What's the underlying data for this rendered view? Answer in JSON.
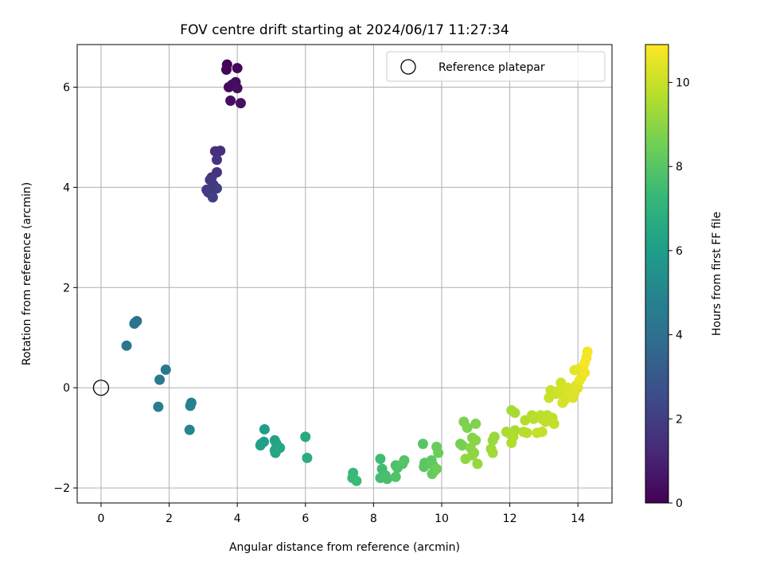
{
  "chart_data": {
    "type": "scatter",
    "title": "FOV centre drift starting at 2024/06/17 11:27:34",
    "xlabel": "Angular distance from reference (arcmin)",
    "ylabel": "Rotation from reference (arcmin)",
    "xlim": [
      -0.7,
      15
    ],
    "ylim": [
      -2.3,
      6.85
    ],
    "xticks": [
      0,
      2,
      4,
      6,
      8,
      10,
      12,
      14
    ],
    "xtick_labels": [
      "0",
      "2",
      "4",
      "6",
      "8",
      "10",
      "12",
      "14"
    ],
    "yticks": [
      -2,
      0,
      2,
      4,
      6
    ],
    "ytick_labels": [
      "−2",
      "0",
      "2",
      "4",
      "6"
    ],
    "grid": true,
    "legend": {
      "position": "top-right",
      "entries": [
        {
          "label": "Reference platepar",
          "marker": "open-circle"
        }
      ]
    },
    "reference_point": {
      "x": 0,
      "y": 0,
      "color": "#000000"
    },
    "colorbar": {
      "label": "Hours from first FF file",
      "min": 0,
      "max": 10.9,
      "ticks": [
        0,
        2,
        4,
        6,
        8,
        10
      ],
      "tick_labels": [
        "0",
        "2",
        "4",
        "6",
        "8",
        "10"
      ],
      "colormap": "viridis",
      "stops": [
        "#440154",
        "#482878",
        "#3e4989",
        "#31688e",
        "#26828e",
        "#1f9e89",
        "#35b779",
        "#6ece58",
        "#b5de2b",
        "#fde725"
      ]
    },
    "points": [
      {
        "x": 3.7,
        "y": 6.45,
        "c": 0.1
      },
      {
        "x": 3.68,
        "y": 6.35,
        "c": 0.15
      },
      {
        "x": 4.0,
        "y": 6.38,
        "c": 0.2
      },
      {
        "x": 3.75,
        "y": 6.0,
        "c": 0.25
      },
      {
        "x": 3.85,
        "y": 6.05,
        "c": 0.3
      },
      {
        "x": 3.95,
        "y": 6.1,
        "c": 0.35
      },
      {
        "x": 4.0,
        "y": 5.98,
        "c": 0.4
      },
      {
        "x": 3.8,
        "y": 5.73,
        "c": 0.45
      },
      {
        "x": 4.1,
        "y": 5.68,
        "c": 0.5
      },
      {
        "x": 3.35,
        "y": 4.72,
        "c": 1.5
      },
      {
        "x": 3.5,
        "y": 4.73,
        "c": 1.55
      },
      {
        "x": 3.4,
        "y": 4.55,
        "c": 1.6
      },
      {
        "x": 3.4,
        "y": 4.3,
        "c": 1.65
      },
      {
        "x": 3.25,
        "y": 4.2,
        "c": 1.7
      },
      {
        "x": 3.2,
        "y": 4.15,
        "c": 1.75
      },
      {
        "x": 3.3,
        "y": 4.05,
        "c": 1.8
      },
      {
        "x": 3.1,
        "y": 3.95,
        "c": 1.85
      },
      {
        "x": 3.15,
        "y": 3.9,
        "c": 1.9
      },
      {
        "x": 3.4,
        "y": 3.98,
        "c": 1.95
      },
      {
        "x": 3.25,
        "y": 3.85,
        "c": 2.0
      },
      {
        "x": 3.28,
        "y": 3.8,
        "c": 2.05
      },
      {
        "x": 1.05,
        "y": 1.33,
        "c": 4.1
      },
      {
        "x": 1.0,
        "y": 1.3,
        "c": 4.15
      },
      {
        "x": 0.98,
        "y": 1.28,
        "c": 4.2
      },
      {
        "x": 0.75,
        "y": 0.84,
        "c": 4.3
      },
      {
        "x": 1.9,
        "y": 0.36,
        "c": 4.4
      },
      {
        "x": 1.72,
        "y": 0.16,
        "c": 4.5
      },
      {
        "x": 1.68,
        "y": -0.38,
        "c": 4.6
      },
      {
        "x": 2.65,
        "y": -0.3,
        "c": 4.8
      },
      {
        "x": 2.62,
        "y": -0.36,
        "c": 4.85
      },
      {
        "x": 2.6,
        "y": -0.84,
        "c": 5.0
      },
      {
        "x": 4.8,
        "y": -0.83,
        "c": 6.0
      },
      {
        "x": 4.78,
        "y": -1.08,
        "c": 6.05
      },
      {
        "x": 4.7,
        "y": -1.12,
        "c": 6.1
      },
      {
        "x": 4.68,
        "y": -1.15,
        "c": 6.15
      },
      {
        "x": 5.1,
        "y": -1.05,
        "c": 6.2
      },
      {
        "x": 5.15,
        "y": -1.12,
        "c": 6.25
      },
      {
        "x": 5.2,
        "y": -1.18,
        "c": 6.3
      },
      {
        "x": 5.1,
        "y": -1.25,
        "c": 6.35
      },
      {
        "x": 5.12,
        "y": -1.3,
        "c": 6.4
      },
      {
        "x": 5.25,
        "y": -1.2,
        "c": 6.45
      },
      {
        "x": 6.0,
        "y": -0.98,
        "c": 6.6
      },
      {
        "x": 6.05,
        "y": -1.4,
        "c": 6.7
      },
      {
        "x": 7.4,
        "y": -1.7,
        "c": 7.3
      },
      {
        "x": 7.38,
        "y": -1.8,
        "c": 7.35
      },
      {
        "x": 7.5,
        "y": -1.86,
        "c": 7.4
      },
      {
        "x": 8.2,
        "y": -1.42,
        "c": 7.5
      },
      {
        "x": 8.25,
        "y": -1.62,
        "c": 7.55
      },
      {
        "x": 8.2,
        "y": -1.8,
        "c": 7.6
      },
      {
        "x": 8.35,
        "y": -1.75,
        "c": 7.65
      },
      {
        "x": 8.4,
        "y": -1.82,
        "c": 7.7
      },
      {
        "x": 8.65,
        "y": -1.55,
        "c": 7.75
      },
      {
        "x": 8.7,
        "y": -1.6,
        "c": 7.8
      },
      {
        "x": 8.65,
        "y": -1.78,
        "c": 7.85
      },
      {
        "x": 8.9,
        "y": -1.45,
        "c": 7.9
      },
      {
        "x": 8.85,
        "y": -1.52,
        "c": 7.95
      },
      {
        "x": 9.45,
        "y": -1.12,
        "c": 8.0
      },
      {
        "x": 9.5,
        "y": -1.5,
        "c": 8.05
      },
      {
        "x": 9.48,
        "y": -1.58,
        "c": 8.1
      },
      {
        "x": 9.7,
        "y": -1.45,
        "c": 8.15
      },
      {
        "x": 9.75,
        "y": -1.55,
        "c": 8.2
      },
      {
        "x": 9.8,
        "y": -1.65,
        "c": 8.25
      },
      {
        "x": 9.72,
        "y": -1.72,
        "c": 8.3
      },
      {
        "x": 9.85,
        "y": -1.18,
        "c": 8.35
      },
      {
        "x": 9.9,
        "y": -1.3,
        "c": 8.4
      },
      {
        "x": 9.85,
        "y": -1.62,
        "c": 8.45
      },
      {
        "x": 10.55,
        "y": -1.12,
        "c": 8.6
      },
      {
        "x": 10.6,
        "y": -1.15,
        "c": 8.65
      },
      {
        "x": 10.65,
        "y": -0.68,
        "c": 8.7
      },
      {
        "x": 10.75,
        "y": -0.8,
        "c": 8.75
      },
      {
        "x": 11.0,
        "y": -0.72,
        "c": 8.8
      },
      {
        "x": 10.9,
        "y": -1.0,
        "c": 8.85
      },
      {
        "x": 11.0,
        "y": -1.05,
        "c": 8.9
      },
      {
        "x": 10.85,
        "y": -1.2,
        "c": 8.95
      },
      {
        "x": 10.95,
        "y": -1.3,
        "c": 9.0
      },
      {
        "x": 10.9,
        "y": -1.35,
        "c": 9.05
      },
      {
        "x": 10.7,
        "y": -1.42,
        "c": 9.1
      },
      {
        "x": 11.05,
        "y": -1.52,
        "c": 9.15
      },
      {
        "x": 11.55,
        "y": -0.98,
        "c": 9.2
      },
      {
        "x": 11.5,
        "y": -1.05,
        "c": 9.25
      },
      {
        "x": 11.45,
        "y": -1.22,
        "c": 9.3
      },
      {
        "x": 11.5,
        "y": -1.3,
        "c": 9.35
      },
      {
        "x": 12.05,
        "y": -0.45,
        "c": 9.4
      },
      {
        "x": 12.15,
        "y": -0.5,
        "c": 9.45
      },
      {
        "x": 11.9,
        "y": -0.88,
        "c": 9.5
      },
      {
        "x": 12.0,
        "y": -0.92,
        "c": 9.52
      },
      {
        "x": 12.15,
        "y": -0.85,
        "c": 9.55
      },
      {
        "x": 12.1,
        "y": -0.98,
        "c": 9.58
      },
      {
        "x": 12.05,
        "y": -1.1,
        "c": 9.6
      },
      {
        "x": 12.45,
        "y": -0.65,
        "c": 9.65
      },
      {
        "x": 12.4,
        "y": -0.88,
        "c": 9.68
      },
      {
        "x": 12.5,
        "y": -0.9,
        "c": 9.7
      },
      {
        "x": 12.65,
        "y": -0.55,
        "c": 9.72
      },
      {
        "x": 12.7,
        "y": -0.62,
        "c": 9.75
      },
      {
        "x": 12.9,
        "y": -0.55,
        "c": 9.78
      },
      {
        "x": 12.95,
        "y": -0.62,
        "c": 9.8
      },
      {
        "x": 13.1,
        "y": -0.55,
        "c": 9.82
      },
      {
        "x": 13.05,
        "y": -0.68,
        "c": 9.85
      },
      {
        "x": 13.25,
        "y": -0.6,
        "c": 9.88
      },
      {
        "x": 13.3,
        "y": -0.72,
        "c": 9.9
      },
      {
        "x": 12.8,
        "y": -0.9,
        "c": 9.92
      },
      {
        "x": 12.95,
        "y": -0.88,
        "c": 9.95
      },
      {
        "x": 13.2,
        "y": -0.05,
        "c": 10.0
      },
      {
        "x": 13.15,
        "y": -0.2,
        "c": 10.05
      },
      {
        "x": 13.35,
        "y": -0.12,
        "c": 10.1
      },
      {
        "x": 13.5,
        "y": 0.1,
        "c": 10.15
      },
      {
        "x": 13.45,
        "y": -0.05,
        "c": 10.18
      },
      {
        "x": 13.55,
        "y": -0.15,
        "c": 10.2
      },
      {
        "x": 13.6,
        "y": -0.25,
        "c": 10.22
      },
      {
        "x": 13.55,
        "y": -0.3,
        "c": 10.25
      },
      {
        "x": 13.7,
        "y": 0.0,
        "c": 10.28
      },
      {
        "x": 13.75,
        "y": -0.1,
        "c": 10.3
      },
      {
        "x": 13.85,
        "y": -0.2,
        "c": 10.32
      },
      {
        "x": 13.9,
        "y": -0.1,
        "c": 10.35
      },
      {
        "x": 13.95,
        "y": 0.05,
        "c": 10.38
      },
      {
        "x": 14.0,
        "y": 0.0,
        "c": 10.4
      },
      {
        "x": 13.9,
        "y": 0.35,
        "c": 10.45
      },
      {
        "x": 14.05,
        "y": 0.38,
        "c": 10.5
      },
      {
        "x": 14.1,
        "y": 0.2,
        "c": 10.55
      },
      {
        "x": 14.05,
        "y": 0.15,
        "c": 10.58
      },
      {
        "x": 14.15,
        "y": 0.42,
        "c": 10.62
      },
      {
        "x": 14.2,
        "y": 0.3,
        "c": 10.66
      },
      {
        "x": 14.25,
        "y": 0.6,
        "c": 10.7
      },
      {
        "x": 14.28,
        "y": 0.72,
        "c": 10.75
      },
      {
        "x": 14.2,
        "y": 0.5,
        "c": 10.8
      }
    ]
  }
}
